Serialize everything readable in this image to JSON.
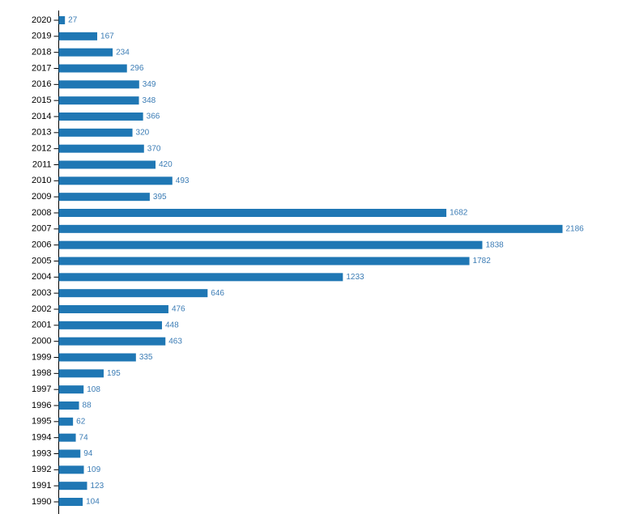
{
  "chart_data": {
    "type": "bar",
    "orientation": "horizontal",
    "color": "#1f77b4",
    "label_color": "#3b7cb5",
    "categories": [
      "2020",
      "2019",
      "2018",
      "2017",
      "2016",
      "2015",
      "2014",
      "2013",
      "2012",
      "2011",
      "2010",
      "2009",
      "2008",
      "2007",
      "2006",
      "2005",
      "2004",
      "2003",
      "2002",
      "2001",
      "2000",
      "1999",
      "1998",
      "1997",
      "1996",
      "1995",
      "1994",
      "1993",
      "1992",
      "1991",
      "1990"
    ],
    "values": [
      27,
      167,
      234,
      296,
      349,
      348,
      366,
      320,
      370,
      420,
      493,
      395,
      1682,
      2186,
      1838,
      1782,
      1233,
      646,
      476,
      448,
      463,
      335,
      195,
      108,
      88,
      62,
      74,
      94,
      109,
      123,
      104
    ]
  }
}
